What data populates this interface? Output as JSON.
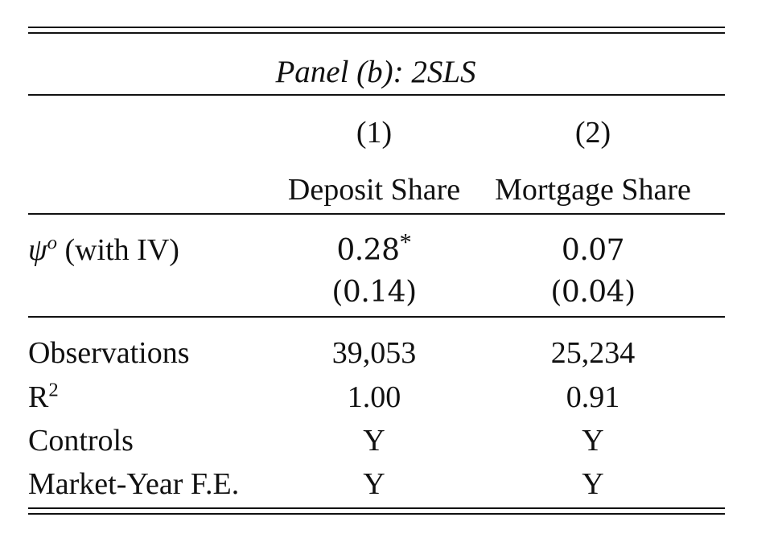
{
  "table": {
    "panel_title": "Panel (b): 2SLS",
    "column_numbers": [
      "(1)",
      "(2)"
    ],
    "column_headers": [
      "Deposit Share",
      "Mortgage Share"
    ],
    "coef_row": {
      "label_symbol": "ψ",
      "label_superscript": "o",
      "label_suffix": "(with IV)",
      "col1_value": "0.28",
      "col1_significance": "*",
      "col2_value": "0.07",
      "col1_se": "(0.14)",
      "col2_se": "(0.04)"
    },
    "stats_rows": [
      {
        "label": "Observations",
        "col1": "39,053",
        "col2": "25,234"
      },
      {
        "label": "R",
        "label_superscript": "2",
        "col1": "1.00",
        "col2": "0.91"
      },
      {
        "label": "Controls",
        "col1": "Y",
        "col2": "Y"
      },
      {
        "label": "Market-Year F.E.",
        "col1": "Y",
        "col2": "Y"
      }
    ]
  }
}
